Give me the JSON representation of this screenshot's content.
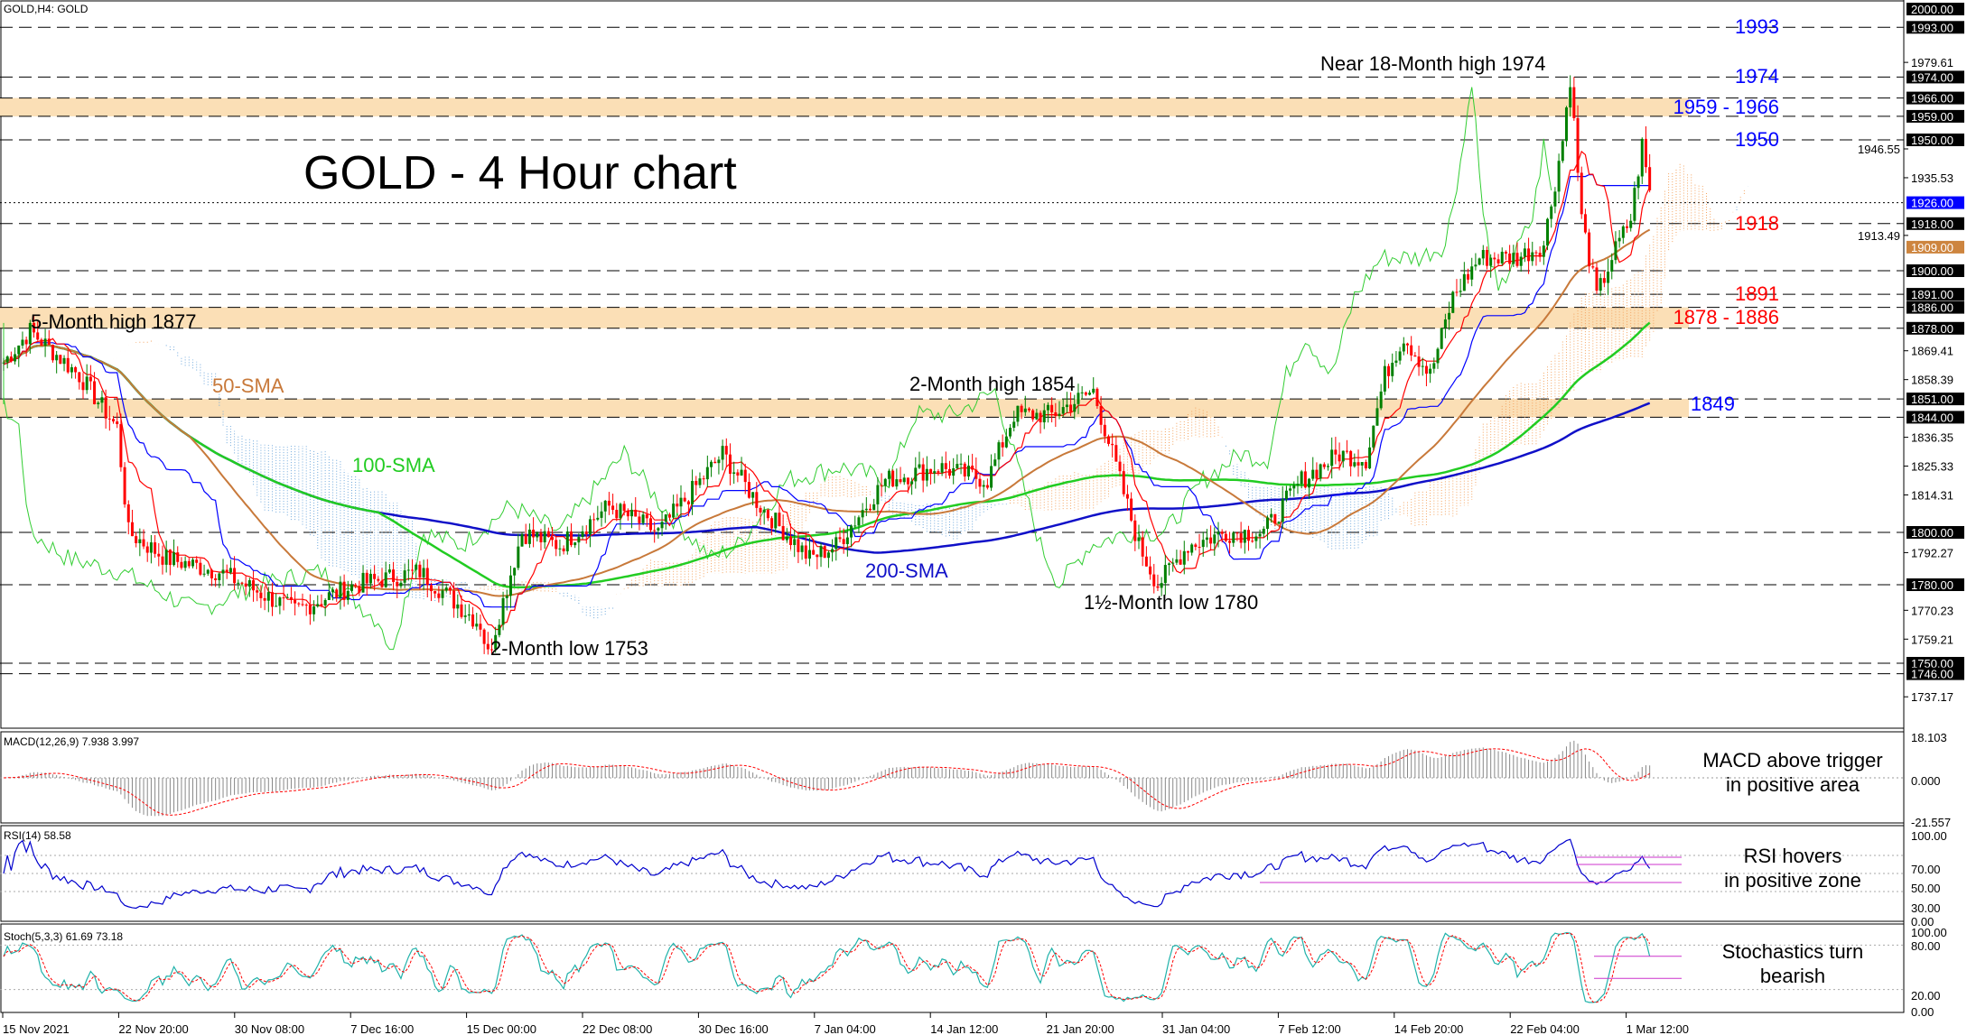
{
  "symbol_label": "GOLD,H4: GOLD",
  "title": "GOLD - 4 Hour chart",
  "colors": {
    "zone": "#fbdfb6",
    "sma50": "#c8793a",
    "sma100": "#22cc22",
    "sma200": "#1010c8",
    "level_red": "#ff0000",
    "level_blue": "#0000ff",
    "candle_up": "#008000",
    "candle_down": "#ff0000"
  },
  "levels": [
    {
      "label": "1993",
      "price": 1993,
      "color": "blue"
    },
    {
      "label": "1974",
      "price": 1974,
      "color": "blue"
    },
    {
      "label": "1959 - 1966",
      "price": 1962.5,
      "color": "blue"
    },
    {
      "label": "1950",
      "price": 1950,
      "color": "blue"
    },
    {
      "label": "1918",
      "price": 1918,
      "color": "red"
    },
    {
      "label": "1891",
      "price": 1891,
      "color": "red"
    },
    {
      "label": "1878 - 1886",
      "price": 1882,
      "color": "red"
    },
    {
      "label": "1849",
      "price": 1849,
      "color": "blue"
    }
  ],
  "annotations": {
    "near_high": "Near 18-Month high 1974",
    "five_month": "5-Month high 1877",
    "sma50": "50-SMA",
    "sma100": "100-SMA",
    "sma200": "200-SMA",
    "two_month_high": "2-Month high 1854",
    "two_month_low": "2-Month low 1753",
    "month_low": "1½-Month low 1780"
  },
  "indicators": {
    "macd": {
      "label": "MACD(12,26,9) 7.938 3.997",
      "comment_1": "MACD above trigger",
      "comment_2": "in positive area",
      "ticks": [
        "18.103",
        "0.000",
        "-21.557"
      ]
    },
    "rsi": {
      "label": "RSI(14) 58.58",
      "comment_1": "RSI hovers",
      "comment_2": "in positive zone",
      "ticks": [
        "100.00",
        "70.00",
        "50.00",
        "30.00",
        "0.00"
      ]
    },
    "stoch": {
      "label": "Stoch(5,3,3) 61.69 73.18",
      "comment_1": "Stochastics turn",
      "comment_2": "bearish",
      "ticks": [
        "100.00",
        "80.00",
        "20.00",
        "0.00"
      ]
    }
  },
  "chart_data": {
    "type": "candlestick",
    "title": "GOLD - 4 Hour chart",
    "ylim": [
      1730,
      2002
    ],
    "y_ticks": [
      "1979.61",
      "1946.55",
      "1935.53",
      "1913.49",
      "1869.41",
      "1858.39",
      "1836.35",
      "1825.33",
      "1814.31",
      "1792.27",
      "1770.23",
      "1759.21",
      "1737.17"
    ],
    "price_boxes": [
      {
        "value": "2000.00",
        "style": "black"
      },
      {
        "value": "1993.00",
        "style": "black"
      },
      {
        "value": "1974.00",
        "style": "black"
      },
      {
        "value": "1966.00",
        "style": "black"
      },
      {
        "value": "1959.00",
        "style": "black"
      },
      {
        "value": "1950.00",
        "style": "black"
      },
      {
        "value": "1926.00",
        "style": "blue"
      },
      {
        "value": "1918.00",
        "style": "black"
      },
      {
        "value": "1909.00",
        "style": "orange"
      },
      {
        "value": "1900.00",
        "style": "black"
      },
      {
        "value": "1891.00",
        "style": "black"
      },
      {
        "value": "1886.00",
        "style": "black"
      },
      {
        "value": "1878.00",
        "style": "black"
      },
      {
        "value": "1851.00",
        "style": "black"
      },
      {
        "value": "1844.00",
        "style": "black"
      },
      {
        "value": "1800.00",
        "style": "black"
      },
      {
        "value": "1780.00",
        "style": "black"
      },
      {
        "value": "1750.00",
        "style": "black"
      },
      {
        "value": "1746.00",
        "style": "black"
      }
    ],
    "dashed_levels": [
      1993,
      1974,
      1966,
      1959,
      1950,
      1918,
      1900,
      1891,
      1886,
      1878,
      1851,
      1844,
      1800,
      1780,
      1750,
      1746
    ],
    "dotted_levels": [
      1926
    ],
    "zones": [
      [
        1959,
        1966
      ],
      [
        1878,
        1886
      ],
      [
        1844,
        1851
      ]
    ],
    "x_labels": [
      "15 Nov 2021",
      "22 Nov 20:00",
      "30 Nov 08:00",
      "7 Dec 16:00",
      "15 Dec 00:00",
      "22 Dec 08:00",
      "30 Dec 16:00",
      "7 Jan 04:00",
      "14 Jan 12:00",
      "21 Jan 20:00",
      "31 Jan 04:00",
      "7 Feb 12:00",
      "14 Feb 20:00",
      "22 Feb 04:00",
      "1 Mar 12:00"
    ],
    "close_waypoints": [
      [
        0,
        1865
      ],
      [
        7,
        1877
      ],
      [
        20,
        1860
      ],
      [
        30,
        1840
      ],
      [
        33,
        1800
      ],
      [
        43,
        1790
      ],
      [
        57,
        1785
      ],
      [
        77,
        1770
      ],
      [
        93,
        1780
      ],
      [
        110,
        1785
      ],
      [
        126,
        1765
      ],
      [
        128,
        1753
      ],
      [
        137,
        1800
      ],
      [
        147,
        1795
      ],
      [
        160,
        1810
      ],
      [
        173,
        1800
      ],
      [
        190,
        1830
      ],
      [
        200,
        1810
      ],
      [
        213,
        1790
      ],
      [
        220,
        1795
      ],
      [
        233,
        1820
      ],
      [
        247,
        1825
      ],
      [
        260,
        1820
      ],
      [
        267,
        1845
      ],
      [
        277,
        1845
      ],
      [
        288,
        1854
      ],
      [
        293,
        1830
      ],
      [
        300,
        1795
      ],
      [
        305,
        1780
      ],
      [
        313,
        1795
      ],
      [
        323,
        1800
      ],
      [
        333,
        1800
      ],
      [
        343,
        1820
      ],
      [
        353,
        1830
      ],
      [
        360,
        1828
      ],
      [
        365,
        1860
      ],
      [
        370,
        1875
      ],
      [
        377,
        1860
      ],
      [
        383,
        1890
      ],
      [
        390,
        1905
      ],
      [
        400,
        1905
      ],
      [
        407,
        1910
      ],
      [
        412,
        1950
      ],
      [
        414,
        1974
      ],
      [
        417,
        1920
      ],
      [
        421,
        1890
      ],
      [
        425,
        1905
      ],
      [
        430,
        1920
      ],
      [
        433,
        1948
      ],
      [
        435,
        1930
      ]
    ]
  }
}
